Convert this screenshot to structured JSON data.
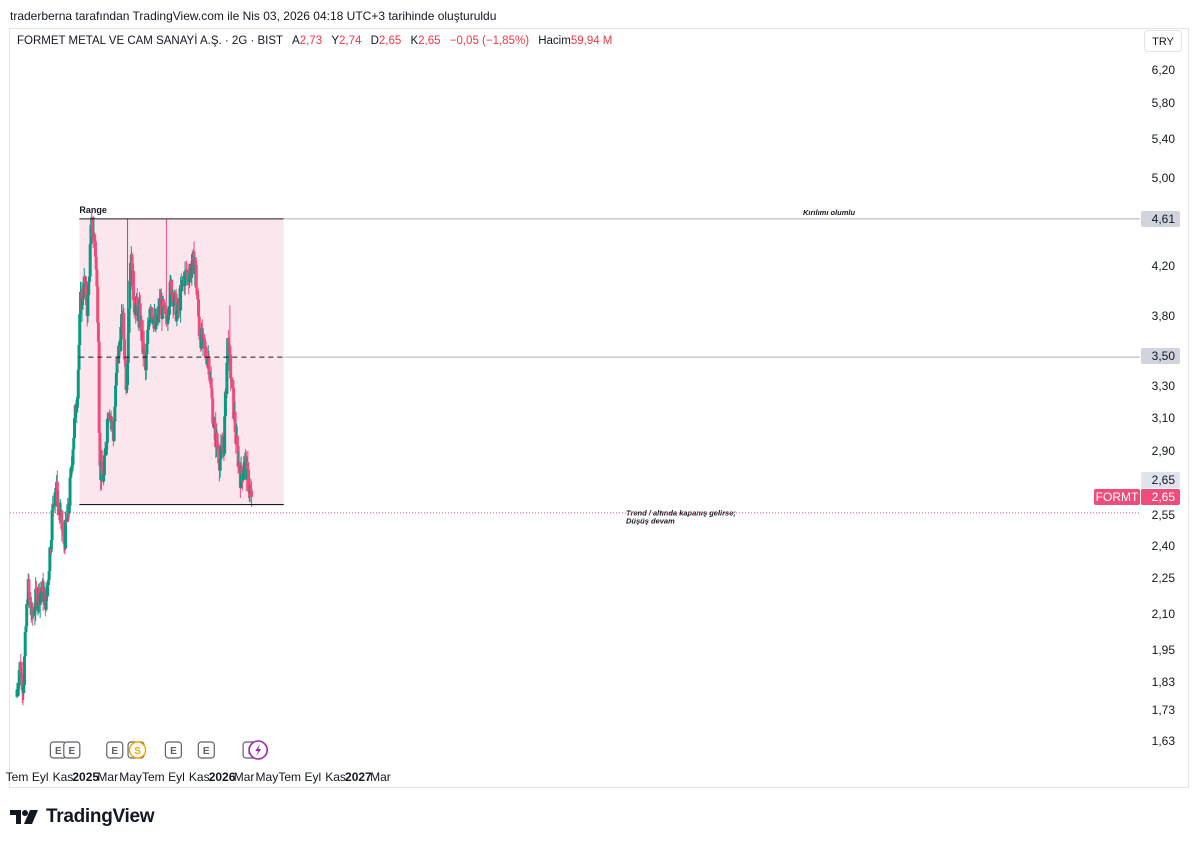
{
  "attribution": "traderberna tarafından TradingView.com ile Nis 03, 2026 04:18 UTC+3 tarihinde oluşturuldu",
  "legend": {
    "symbol": "FORMET METAL VE CAM SANAYİ A.Ş. · 2G · BIST",
    "open_label": "A",
    "open": "2,73",
    "high_label": "Y",
    "high": "2,74",
    "low_label": "D",
    "low": "2,65",
    "close_label": "K",
    "close": "2,65",
    "change": "−0,05 (−1,85%)",
    "volume_label": "Hacim",
    "volume": "59,94 M"
  },
  "currency": "TRY",
  "brand": "TradingView",
  "colors": {
    "up": "#089981",
    "down": "#ef4c7c",
    "range_fill": "#fbe6ee",
    "line": "#131722",
    "tag": "#ef4c7c"
  },
  "chart_data": {
    "type": "candlestick",
    "y_scale": "log",
    "y_ticks": [
      "6,20",
      "5,80",
      "5,40",
      "5,00",
      "4,20",
      "3,80",
      "3,30",
      "3,10",
      "2,90",
      "2,55",
      "2,40",
      "2,25",
      "2,10",
      "1,95",
      "1,83",
      "1,73",
      "1,63"
    ],
    "x_ticks": [
      {
        "label": "Tem",
        "date": "2024-07-01",
        "bold": false
      },
      {
        "label": "Eyl",
        "date": "2024-09-01",
        "bold": false
      },
      {
        "label": "Kas",
        "date": "2024-11-01",
        "bold": false
      },
      {
        "label": "2025",
        "date": "2025-01-01",
        "bold": true
      },
      {
        "label": "Mar",
        "date": "2025-03-01",
        "bold": false
      },
      {
        "label": "May",
        "date": "2025-05-01",
        "bold": false
      },
      {
        "label": "Tem",
        "date": "2025-07-01",
        "bold": false
      },
      {
        "label": "Eyl",
        "date": "2025-09-01",
        "bold": false
      },
      {
        "label": "Kas",
        "date": "2025-11-01",
        "bold": false
      },
      {
        "label": "2026",
        "date": "2026-01-01",
        "bold": true
      },
      {
        "label": "Mar",
        "date": "2026-03-01",
        "bold": false
      },
      {
        "label": "May",
        "date": "2026-05-01",
        "bold": false
      },
      {
        "label": "Tem",
        "date": "2026-07-01",
        "bold": false
      },
      {
        "label": "Eyl",
        "date": "2026-09-01",
        "bold": false
      },
      {
        "label": "Kas",
        "date": "2026-11-01",
        "bold": false
      },
      {
        "label": "2027",
        "date": "2027-01-01",
        "bold": true
      },
      {
        "label": "Mar",
        "date": "2027-03-01",
        "bold": false
      }
    ],
    "price_path": [
      [
        "2024-07-01",
        1.78
      ],
      [
        "2024-07-10",
        1.9
      ],
      [
        "2024-07-20",
        1.82
      ],
      [
        "2024-08-01",
        2.22
      ],
      [
        "2024-08-12",
        2.08
      ],
      [
        "2024-08-25",
        2.18
      ],
      [
        "2024-09-08",
        2.2
      ],
      [
        "2024-09-20",
        2.15
      ],
      [
        "2024-10-05",
        2.55
      ],
      [
        "2024-10-14",
        2.72
      ],
      [
        "2024-10-24",
        2.58
      ],
      [
        "2024-11-06",
        2.42
      ],
      [
        "2024-11-18",
        2.58
      ],
      [
        "2024-11-30",
        2.95
      ],
      [
        "2024-12-12",
        3.3
      ],
      [
        "2024-12-20",
        3.9
      ],
      [
        "2024-12-30",
        4.05
      ],
      [
        "2025-01-08",
        3.85
      ],
      [
        "2025-01-18",
        4.55
      ],
      [
        "2025-01-28",
        4.4
      ],
      [
        "2025-02-06",
        3.7
      ],
      [
        "2025-02-09",
        2.8
      ],
      [
        "2025-02-20",
        2.75
      ],
      [
        "2025-03-05",
        3.2
      ],
      [
        "2025-03-18",
        3.0
      ],
      [
        "2025-03-28",
        3.45
      ],
      [
        "2025-04-12",
        3.8
      ],
      [
        "2025-04-22",
        3.3
      ],
      [
        "2025-05-03",
        4.3
      ],
      [
        "2025-05-13",
        3.9
      ],
      [
        "2025-05-28",
        3.8
      ],
      [
        "2025-06-12",
        3.4
      ],
      [
        "2025-06-25",
        3.95
      ],
      [
        "2025-07-08",
        3.7
      ],
      [
        "2025-07-22",
        3.9
      ],
      [
        "2025-08-05",
        3.75
      ],
      [
        "2025-08-20",
        4.05
      ],
      [
        "2025-09-05",
        3.8
      ],
      [
        "2025-09-22",
        4.1
      ],
      [
        "2025-10-08",
        4.15
      ],
      [
        "2025-10-22",
        4.25
      ],
      [
        "2025-11-03",
        3.7
      ],
      [
        "2025-11-15",
        3.55
      ],
      [
        "2025-11-28",
        3.5
      ],
      [
        "2025-12-12",
        3.05
      ],
      [
        "2025-12-28",
        2.85
      ],
      [
        "2026-01-08",
        2.95
      ],
      [
        "2026-01-18",
        3.6
      ],
      [
        "2026-01-28",
        3.35
      ],
      [
        "2026-02-10",
        2.95
      ],
      [
        "2026-02-22",
        2.75
      ],
      [
        "2026-03-05",
        2.85
      ],
      [
        "2026-03-12",
        2.76
      ],
      [
        "2026-03-22",
        2.65
      ]
    ],
    "price_spikes": [
      {
        "date": "2025-01-22",
        "price": 4.63
      },
      {
        "date": "2025-04-23",
        "price": 4.61
      },
      {
        "date": "2025-08-05",
        "price": 4.61
      },
      {
        "date": "2026-01-22",
        "price": 3.88
      }
    ],
    "range_box": {
      "label": "Range",
      "start": "2024-12-15",
      "end": "2026-06-15",
      "top": 4.61,
      "bottom": 2.61
    },
    "levels": [
      {
        "price": 4.61,
        "label": "4,61",
        "note": "Kırılımı olumlu"
      },
      {
        "price": 3.5,
        "label": "3,50",
        "style": "dashed"
      },
      {
        "price": 2.61,
        "note_lines": [
          "Trend / altında kapanış gelirse;",
          "Düşüş devam"
        ]
      }
    ],
    "last_price": {
      "symbol": "FORMT",
      "price": 2.65,
      "label": "2,65",
      "above_label": "2,65"
    },
    "events": [
      {
        "date": "2024-10-01",
        "type": "E"
      },
      {
        "date": "2024-11-06",
        "type": "E"
      },
      {
        "date": "2025-03-01",
        "type": "E"
      },
      {
        "date": "2025-04-27",
        "type": "E"
      },
      {
        "date": "2025-05-01",
        "type": "S"
      },
      {
        "date": "2025-08-05",
        "type": "E"
      },
      {
        "date": "2025-11-01",
        "type": "E"
      },
      {
        "date": "2026-03-01",
        "type": "E"
      },
      {
        "date": "2026-03-20",
        "type": "lightning"
      }
    ]
  }
}
